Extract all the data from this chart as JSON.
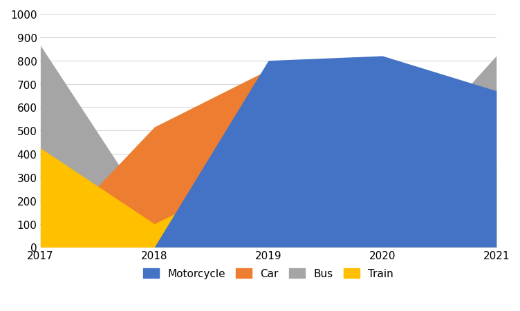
{
  "years": [
    2017,
    2018,
    2019,
    2020,
    2021
  ],
  "series": {
    "Motorcycle": [
      0,
      0,
      800,
      820,
      670
    ],
    "Car": [
      0,
      515,
      760,
      800,
      0
    ],
    "Bus": [
      865,
      120,
      350,
      280,
      820
    ],
    "Train": [
      425,
      100,
      340,
      270,
      360
    ]
  },
  "colors": {
    "Motorcycle": "#4472C4",
    "Car": "#ED7D31",
    "Bus": "#A5A5A5",
    "Train": "#FFC000"
  },
  "draw_order": [
    "Bus",
    "Car",
    "Train",
    "Motorcycle"
  ],
  "ylim": [
    0,
    1000
  ],
  "yticks": [
    0,
    100,
    200,
    300,
    400,
    500,
    600,
    700,
    800,
    900,
    1000
  ],
  "background_color": "#FFFFFF",
  "grid_color": "#D9D9D9",
  "legend_order": [
    "Motorcycle",
    "Car",
    "Bus",
    "Train"
  ]
}
